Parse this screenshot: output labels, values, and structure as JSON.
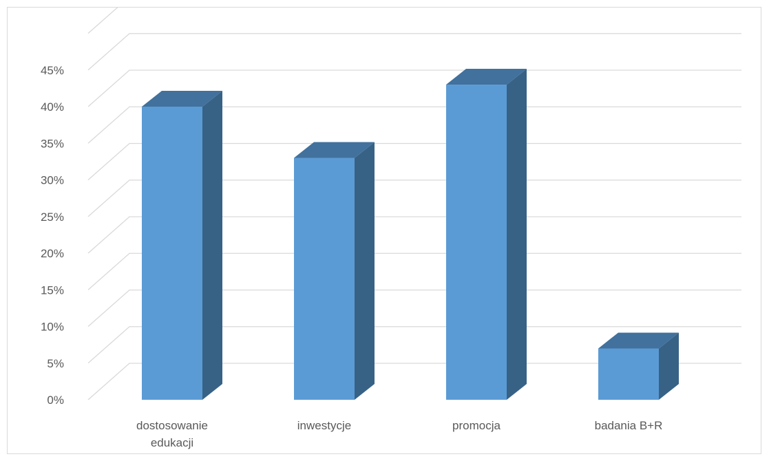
{
  "chart_data": {
    "type": "bar",
    "style": "3d-column",
    "categories": [
      "dostosowanie edukacji",
      "inwestycje",
      "promocja",
      "badania B+R"
    ],
    "category_lines": [
      [
        "dostosowanie",
        "edukacji"
      ],
      [
        "inwestycje"
      ],
      [
        "promocja"
      ],
      [
        "badania B+R"
      ]
    ],
    "values": [
      40,
      33,
      43,
      7
    ],
    "ylim": [
      0,
      45
    ],
    "ytick_step": 5,
    "ytick_suffix": "%",
    "grid": true,
    "legend": "none",
    "title": "",
    "xlabel": "",
    "ylabel": "",
    "colors": {
      "front": "#5b9bd5",
      "top": "#41719c",
      "side": "#376286",
      "grid": "#d9d9d9",
      "text": "#595959"
    }
  }
}
